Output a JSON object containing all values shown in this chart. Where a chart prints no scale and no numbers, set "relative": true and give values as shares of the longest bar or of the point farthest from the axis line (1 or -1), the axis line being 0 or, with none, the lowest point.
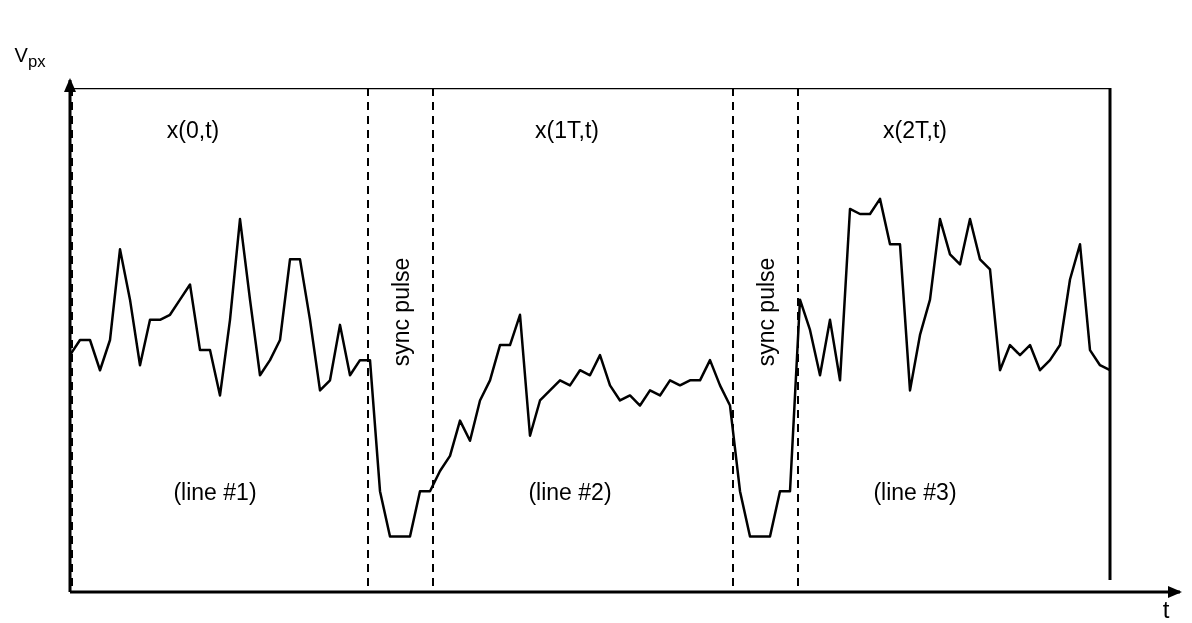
{
  "chart_data": {
    "type": "line",
    "relative": true,
    "xlabel": "t",
    "ylabel": "V$_{px}$",
    "legend": false,
    "marker": "none",
    "line_style": "solid",
    "categories": [
      null,
      null,
      null,
      null,
      null,
      null,
      null,
      null,
      null,
      null,
      null,
      null,
      null,
      null,
      null,
      null,
      null,
      null,
      null,
      null,
      null,
      null,
      null,
      null,
      null,
      null,
      null,
      null,
      null,
      null,
      null,
      null,
      null,
      null,
      null,
      null,
      null,
      null,
      null,
      null,
      null,
      null,
      null,
      null,
      null,
      null,
      null,
      null,
      null,
      null,
      null,
      null,
      null,
      null,
      null,
      null,
      null,
      null,
      null,
      null,
      null,
      null,
      null,
      null,
      null,
      null,
      null,
      null,
      null,
      null,
      null,
      null,
      null,
      null,
      null,
      null,
      null,
      null,
      null,
      null,
      null,
      null,
      null,
      null,
      null,
      null,
      null,
      null,
      null,
      null,
      null,
      null,
      null,
      null,
      null,
      null,
      null,
      null,
      null,
      null,
      null,
      null,
      null,
      null,
      null
    ],
    "series": [
      {
        "color": "#000000",
        "values": [
          0.47,
          0.5,
          0.5,
          0.44,
          0.5,
          0.68,
          0.58,
          0.45,
          0.54,
          0.54,
          0.55,
          0.58,
          0.61,
          0.48,
          0.48,
          0.39,
          0.54,
          0.74,
          0.58,
          0.43,
          0.46,
          0.5,
          0.66,
          0.66,
          0.54,
          0.4,
          0.42,
          0.53,
          0.43,
          0.46,
          0.46,
          0.2,
          0.11,
          0.11,
          0.11,
          0.2,
          0.2,
          0.24,
          0.27,
          0.34,
          0.3,
          0.38,
          0.42,
          0.49,
          0.49,
          0.55,
          0.31,
          0.38,
          0.4,
          0.42,
          0.41,
          0.44,
          0.43,
          0.47,
          0.41,
          0.38,
          0.39,
          0.37,
          0.4,
          0.39,
          0.42,
          0.41,
          0.42,
          0.42,
          0.46,
          0.41,
          0.37,
          0.2,
          0.11,
          0.11,
          0.11,
          0.2,
          0.2,
          0.58,
          0.52,
          0.43,
          0.54,
          0.42,
          0.76,
          0.75,
          0.75,
          0.78,
          0.69,
          0.69,
          0.4,
          0.51,
          0.58,
          0.74,
          0.67,
          0.65,
          0.74,
          0.66,
          0.64,
          0.44,
          0.49,
          0.47,
          0.49,
          0.44,
          0.46,
          0.49,
          0.62,
          0.69,
          0.48,
          0.45,
          0.44
        ]
      },
      {
        "color": "#000000",
        "values": [
          1,
          1,
          1,
          1,
          1,
          1,
          1,
          1,
          1,
          1,
          1,
          1,
          1,
          1,
          1,
          1,
          1,
          1,
          1,
          1,
          1,
          1,
          1,
          1,
          1,
          1,
          1,
          1,
          1,
          1,
          1,
          1,
          1,
          1,
          1,
          1,
          1,
          1,
          1,
          1,
          1,
          1,
          1,
          1,
          1,
          1,
          1,
          1,
          1,
          1,
          1,
          1,
          1,
          1,
          1,
          1,
          1,
          1,
          1,
          1,
          1,
          1,
          1,
          1,
          1,
          1,
          1,
          1,
          1,
          1,
          1,
          1,
          1,
          1,
          1,
          1,
          1,
          1,
          1,
          1,
          1,
          1,
          1,
          1,
          1,
          1,
          1,
          1,
          1,
          1,
          1,
          1,
          1,
          1,
          1,
          1,
          1,
          1,
          1,
          1,
          1,
          1,
          1,
          1,
          1
        ]
      }
    ],
    "annotations": [
      "x(0,t)",
      "x(1T,t)",
      "x(2T,t)",
      "sync pulse",
      "sync pulse",
      "(line #1)",
      "(line #2)",
      "(line #3)"
    ]
  }
}
